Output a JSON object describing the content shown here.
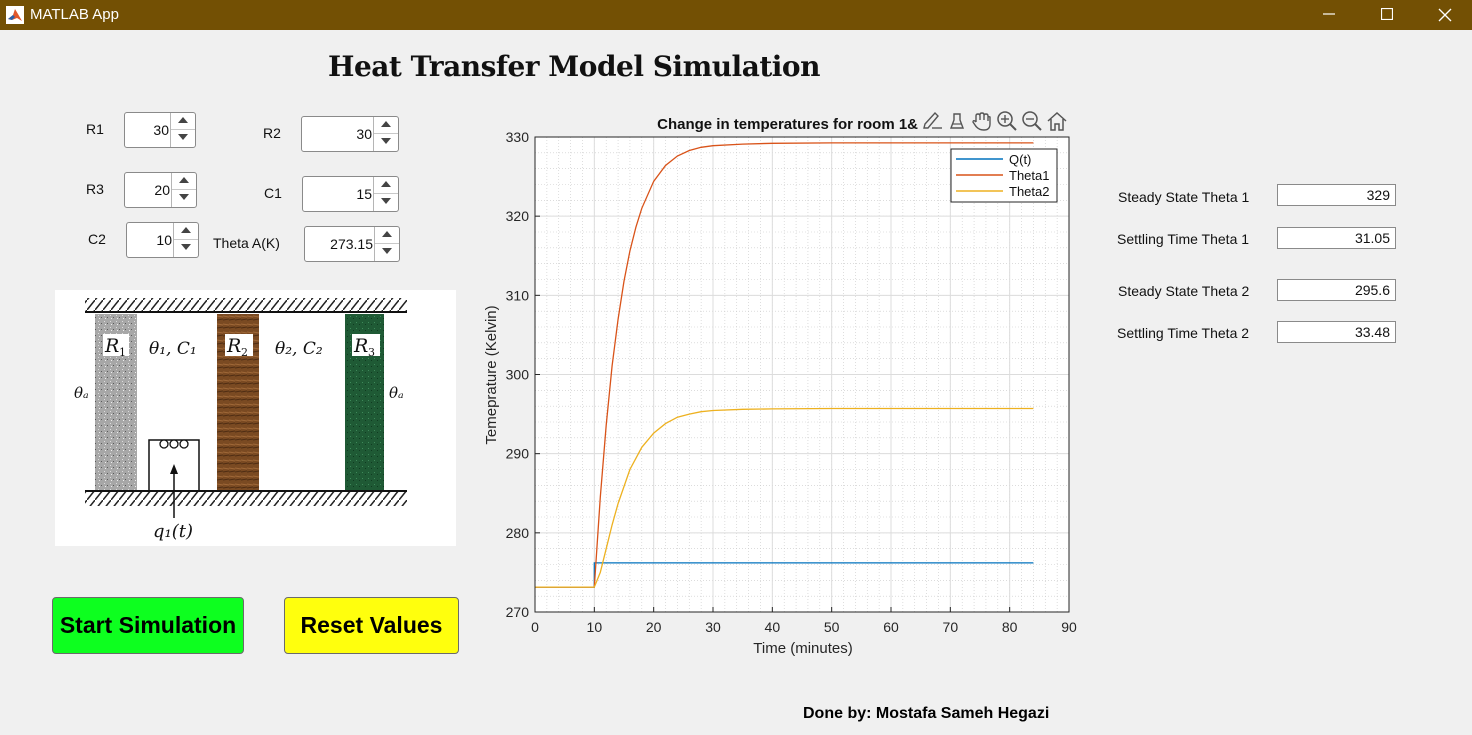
{
  "window": {
    "title": "MATLAB App",
    "controls": [
      "minimize-icon",
      "maximize-icon",
      "close-icon"
    ]
  },
  "main_title": "Heat Transfer Model Simulation",
  "inputs": {
    "r1": {
      "label": "R1",
      "value": "30"
    },
    "r2": {
      "label": "R2",
      "value": "30"
    },
    "r3": {
      "label": "R3",
      "value": "20"
    },
    "c1": {
      "label": "C1",
      "value": "15"
    },
    "c2": {
      "label": "C2",
      "value": "10"
    },
    "theta_a": {
      "label": "Theta A(K)",
      "value": "273.15"
    }
  },
  "diagram": {
    "r1": "R",
    "r1_sub": "1",
    "r2": "R",
    "r2_sub": "2",
    "r3": "R",
    "r3_sub": "3",
    "room1": "θ₁, C₁",
    "room2": "θ₂, C₂",
    "theta_a_left": "θₐ",
    "theta_a_right": "θₐ",
    "heat_input": "q₁(t)"
  },
  "buttons": {
    "start": "Start Simulation",
    "reset": "Reset Values"
  },
  "toolbar": [
    "brush-icon",
    "data-tips-icon",
    "pan-icon",
    "zoom-in-icon",
    "zoom-out-icon",
    "home-icon"
  ],
  "outputs": {
    "ss_theta1": {
      "label": "Steady State Theta 1",
      "value": "329"
    },
    "st_theta1": {
      "label": "Settling Time Theta 1",
      "value": "31.05"
    },
    "ss_theta2": {
      "label": "Steady State Theta 2",
      "value": "295.6"
    },
    "st_theta2": {
      "label": "Settling Time Theta 2",
      "value": "33.48"
    }
  },
  "credit": "Done by: Mostafa Sameh Hegazi",
  "chart_data": {
    "type": "line",
    "title": "Change in temperatures for room 1&2 c",
    "xlabel": "Time (minutes)",
    "ylabel": "Temeprature (Kelvin)",
    "xlim": [
      0,
      90
    ],
    "ylim": [
      270,
      330
    ],
    "xticks": [
      0,
      10,
      20,
      30,
      40,
      50,
      60,
      70,
      80,
      90
    ],
    "yticks": [
      270,
      280,
      290,
      300,
      310,
      320,
      330
    ],
    "grid": true,
    "minor_grid": true,
    "legend_position": "top-right",
    "series": [
      {
        "name": "Q(t)",
        "color": "#0072bd",
        "x": [
          0,
          10,
          10,
          84
        ],
        "y": [
          273.15,
          273.15,
          276.2,
          276.2
        ]
      },
      {
        "name": "Theta1",
        "color": "#d95319",
        "x": [
          0,
          10,
          11,
          12,
          13,
          14,
          15,
          16,
          17,
          18,
          20,
          22,
          24,
          26,
          28,
          30,
          35,
          40,
          50,
          60,
          84
        ],
        "y": [
          273.15,
          273.15,
          284.5,
          293.6,
          301.1,
          307.0,
          311.8,
          315.6,
          318.6,
          321.0,
          324.4,
          326.4,
          327.6,
          328.3,
          328.7,
          328.9,
          329.1,
          329.2,
          329.25,
          329.25,
          329.25
        ]
      },
      {
        "name": "Theta2",
        "color": "#edb120",
        "x": [
          0,
          10,
          11,
          12,
          13,
          14,
          16,
          18,
          20,
          22,
          24,
          26,
          28,
          30,
          35,
          40,
          50,
          60,
          84
        ],
        "y": [
          273.15,
          273.15,
          275.0,
          278.0,
          281.0,
          283.7,
          288.0,
          290.8,
          292.6,
          293.8,
          294.6,
          295.0,
          295.3,
          295.45,
          295.6,
          295.65,
          295.7,
          295.7,
          295.7
        ]
      }
    ]
  }
}
